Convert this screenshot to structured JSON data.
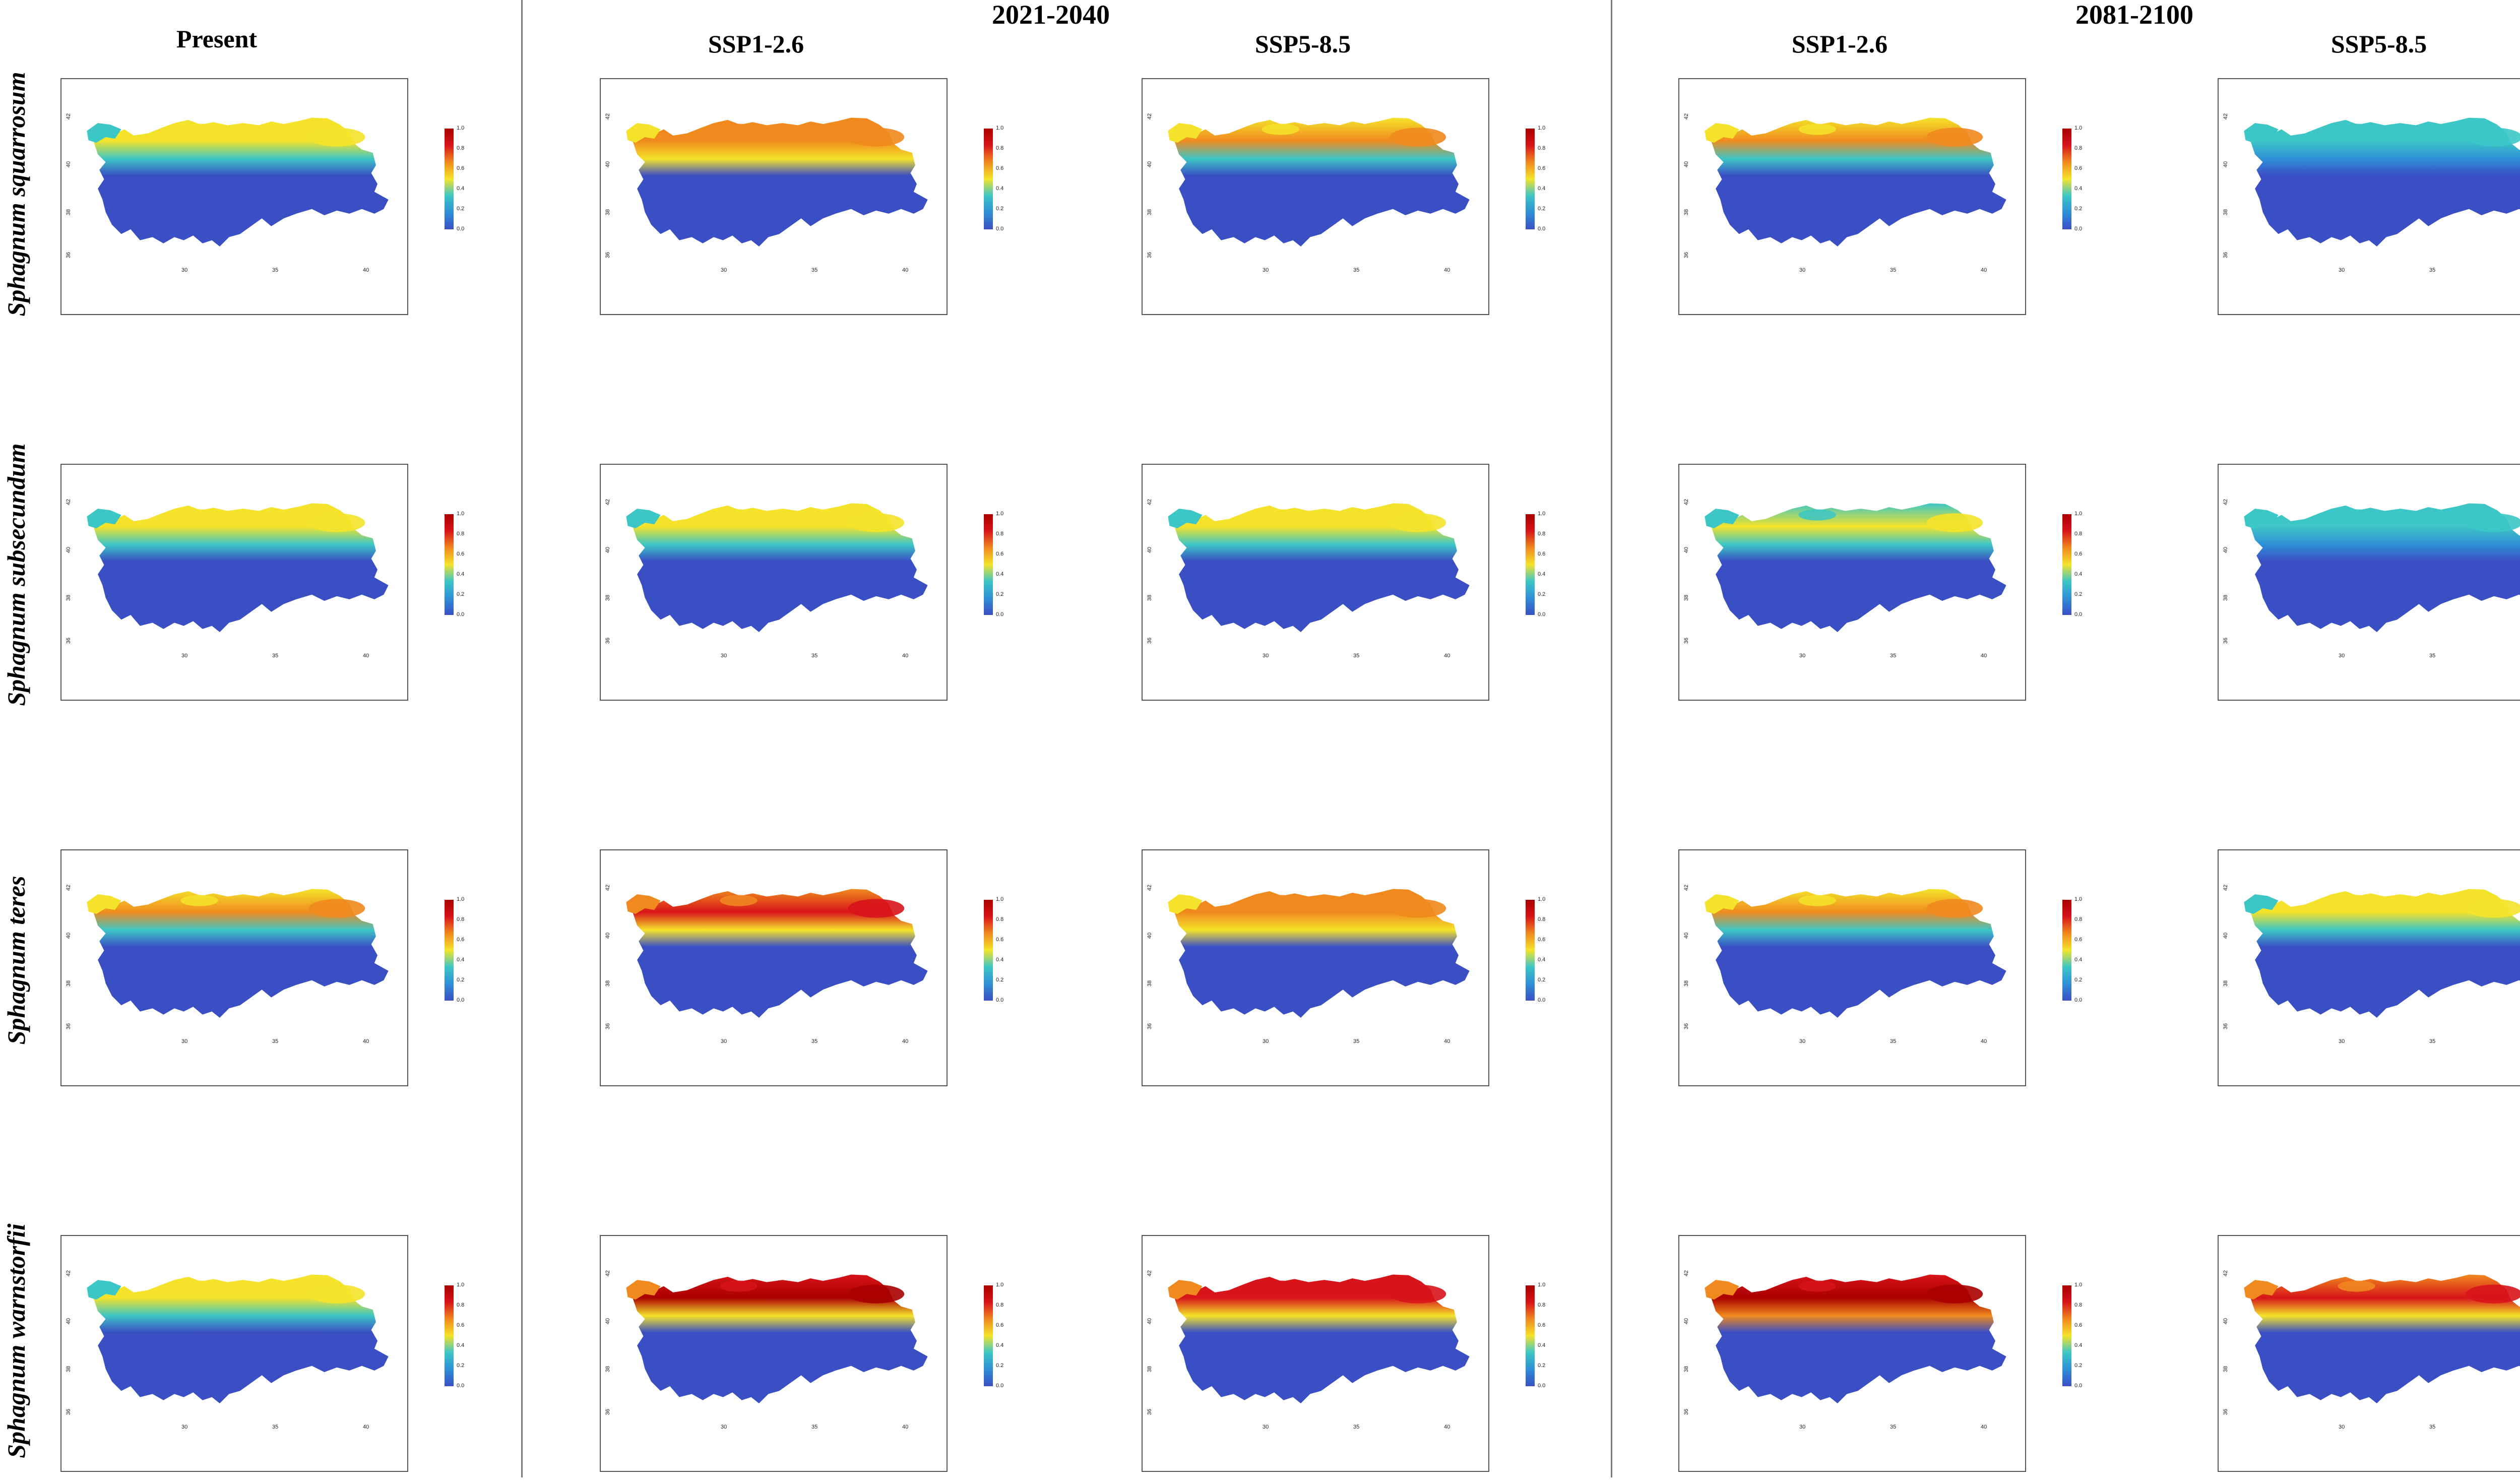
{
  "columns": [
    {
      "key": "present",
      "label": "Present",
      "center": 430
    },
    {
      "key": "p1_ssp126",
      "label": "SSP1-2.6",
      "center": 1500
    },
    {
      "key": "p1_ssp585",
      "label": "SSP5-8.5",
      "center": 2585
    },
    {
      "key": "p2_ssp126",
      "label": "SSP1-2.6",
      "center": 3650
    },
    {
      "key": "p2_ssp585",
      "label": "SSP5-8.5",
      "center": 4720
    }
  ],
  "periods": [
    {
      "label": "2021-2040"
    },
    {
      "label": "2081-2100"
    }
  ],
  "species": [
    {
      "name": "Sphagnum squarrosum"
    },
    {
      "name": "Sphagnum subsecundum"
    },
    {
      "name": "Sphagnum teres"
    },
    {
      "name": "Sphagnum warnstorfii"
    }
  ],
  "axis": {
    "x_ticks": [
      "30",
      "35",
      "40"
    ],
    "y_ticks": [
      "36",
      "38",
      "40",
      "42"
    ]
  },
  "colorbar": {
    "ticks": [
      "0.0",
      "0.2",
      "0.4",
      "0.6",
      "0.8",
      "1.0"
    ],
    "colors": [
      "#3a4fc4",
      "#2f8fd6",
      "#3cc6c6",
      "#f4e32a",
      "#f08a1e",
      "#d7141a",
      "#a90000"
    ]
  },
  "suitability": [
    [
      0.55,
      0.7,
      0.62,
      0.68,
      0.4
    ],
    [
      0.55,
      0.58,
      0.52,
      0.48,
      0.36
    ],
    [
      0.62,
      0.85,
      0.7,
      0.66,
      0.52
    ],
    [
      0.58,
      0.92,
      0.9,
      1.0,
      0.88
    ]
  ]
}
